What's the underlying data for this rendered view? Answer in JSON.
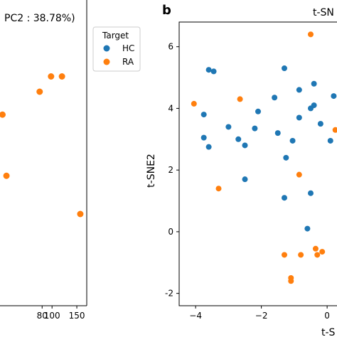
{
  "chart_data": [
    {
      "panel": "a",
      "type": "scatter",
      "ylabel": "PC2 : 38.78%)",
      "xlabel": "",
      "xlim": [
        -5,
        170
      ],
      "ylim": [
        -8,
        12
      ],
      "xticks": [
        80,
        100,
        150
      ],
      "series": [
        {
          "name": "RA",
          "color": "#ff7f0e",
          "points": [
            {
              "x": 0,
              "y": 4.5
            },
            {
              "x": 75,
              "y": 6.0
            },
            {
              "x": 98,
              "y": 7.0
            },
            {
              "x": 120,
              "y": 7.0
            },
            {
              "x": 8,
              "y": 0.5
            },
            {
              "x": 157,
              "y": -2.0
            }
          ]
        }
      ],
      "legend": {
        "title": "Target",
        "entries": [
          {
            "label": "HC",
            "color": "#1f77b4"
          },
          {
            "label": "RA",
            "color": "#ff7f0e"
          }
        ]
      }
    },
    {
      "panel": "b",
      "panel_label": "b",
      "type": "scatter",
      "title": "t-SN",
      "xlabel": "t-S",
      "ylabel": "t-SNE2",
      "xlim": [
        -4.5,
        0.3
      ],
      "ylim": [
        -2.4,
        6.8
      ],
      "xticks": [
        -4,
        -2,
        0
      ],
      "yticks": [
        -2,
        0,
        2,
        4,
        6
      ],
      "series": [
        {
          "name": "HC",
          "color": "#1f77b4",
          "points": [
            {
              "x": -3.6,
              "y": 5.25
            },
            {
              "x": -3.45,
              "y": 5.2
            },
            {
              "x": -3.75,
              "y": 3.8
            },
            {
              "x": -3.75,
              "y": 3.05
            },
            {
              "x": -3.6,
              "y": 2.75
            },
            {
              "x": -3.0,
              "y": 3.4
            },
            {
              "x": -2.7,
              "y": 3.0
            },
            {
              "x": -2.5,
              "y": 2.8
            },
            {
              "x": -2.2,
              "y": 3.35
            },
            {
              "x": -2.1,
              "y": 3.9
            },
            {
              "x": -2.5,
              "y": 1.7
            },
            {
              "x": -1.3,
              "y": 5.3
            },
            {
              "x": -1.6,
              "y": 4.35
            },
            {
              "x": -1.5,
              "y": 3.2
            },
            {
              "x": -1.25,
              "y": 2.4
            },
            {
              "x": -1.05,
              "y": 2.95
            },
            {
              "x": -0.85,
              "y": 4.6
            },
            {
              "x": -0.4,
              "y": 4.8
            },
            {
              "x": -0.85,
              "y": 3.7
            },
            {
              "x": -0.4,
              "y": 4.1
            },
            {
              "x": -0.2,
              "y": 3.5
            },
            {
              "x": -1.3,
              "y": 1.1
            },
            {
              "x": -0.5,
              "y": 1.25
            },
            {
              "x": -0.6,
              "y": 0.1
            },
            {
              "x": 0.1,
              "y": 2.95
            },
            {
              "x": 0.2,
              "y": 4.4
            },
            {
              "x": -0.5,
              "y": 4.0
            }
          ]
        },
        {
          "name": "RA",
          "color": "#ff7f0e",
          "points": [
            {
              "x": -4.05,
              "y": 4.15
            },
            {
              "x": -2.65,
              "y": 4.3
            },
            {
              "x": -3.3,
              "y": 1.4
            },
            {
              "x": -0.5,
              "y": 6.4
            },
            {
              "x": -0.85,
              "y": 1.85
            },
            {
              "x": -1.3,
              "y": -0.75
            },
            {
              "x": -0.8,
              "y": -0.75
            },
            {
              "x": -0.35,
              "y": -0.55
            },
            {
              "x": -0.3,
              "y": -0.75
            },
            {
              "x": -0.15,
              "y": -0.65
            },
            {
              "x": -1.1,
              "y": -1.5
            },
            {
              "x": -1.1,
              "y": -1.6
            },
            {
              "x": 0.25,
              "y": 3.3
            }
          ]
        }
      ]
    }
  ]
}
